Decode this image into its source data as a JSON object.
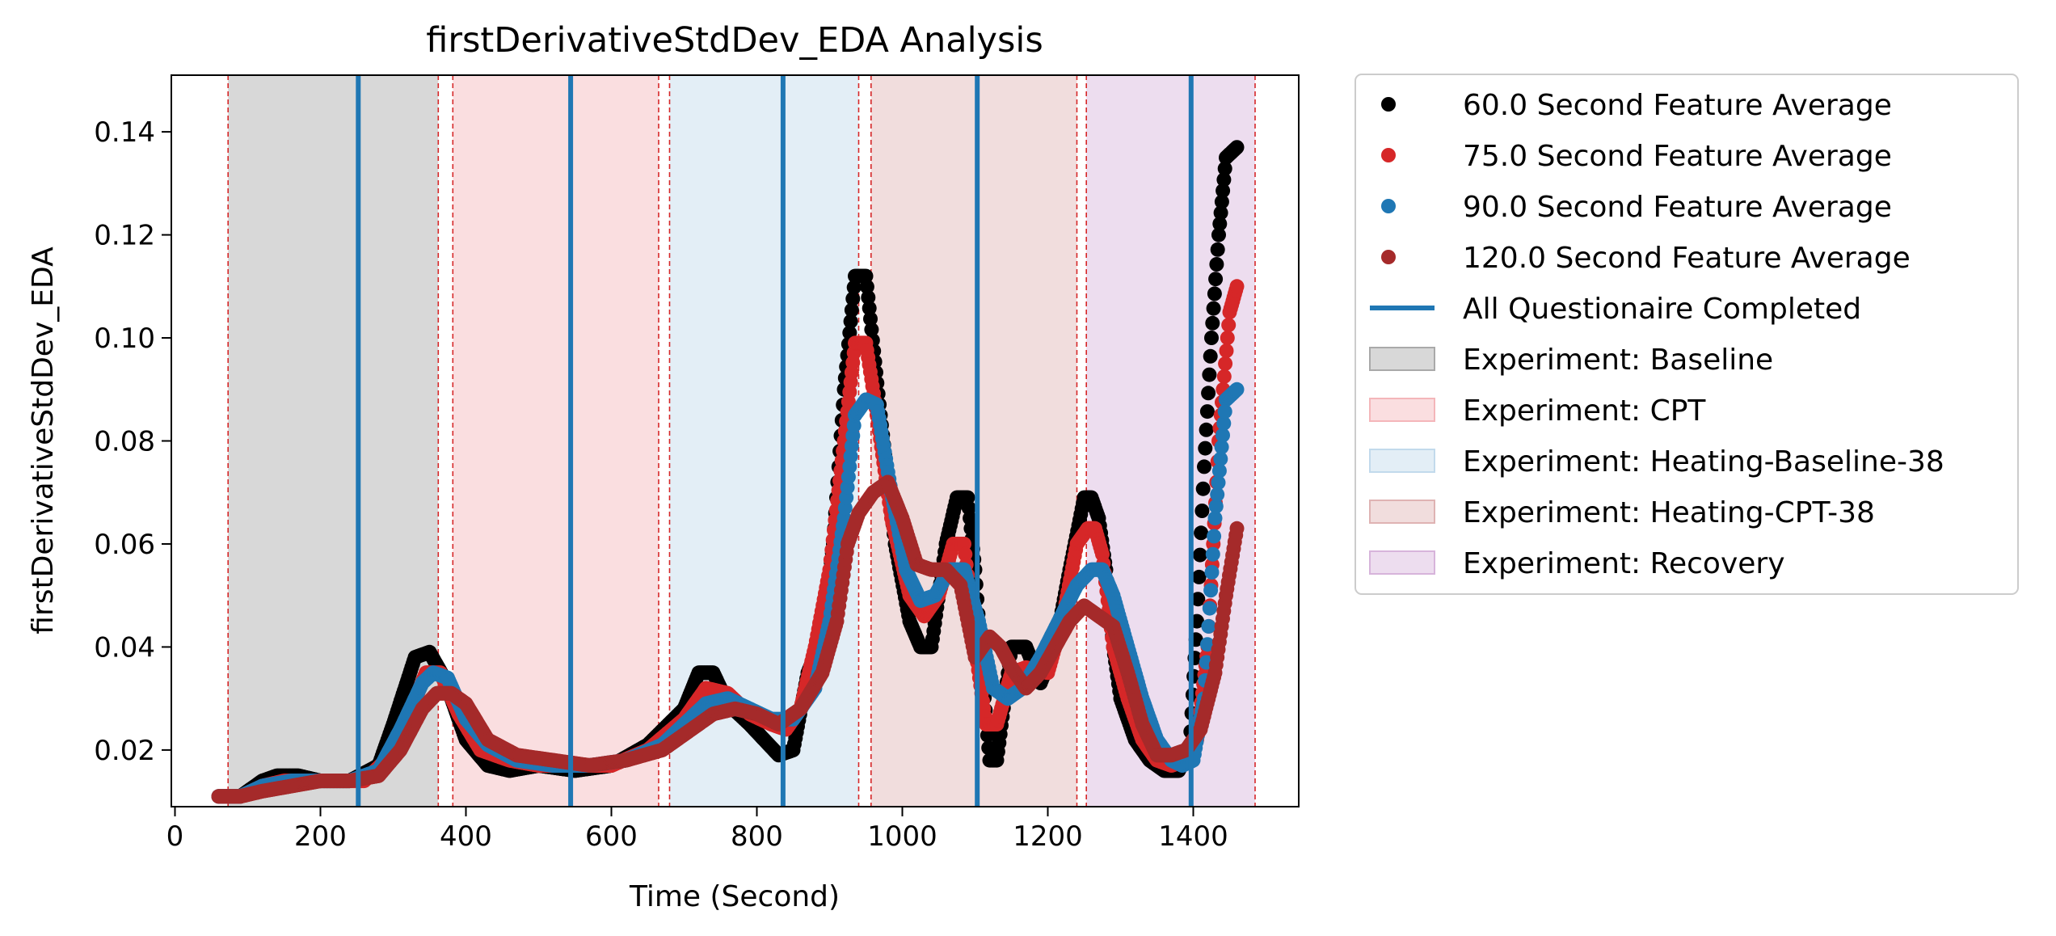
{
  "chart_data": {
    "type": "scatter",
    "title": "firstDerivativeStdDev_EDA Analysis",
    "xlabel": "Time (Second)",
    "ylabel": "firstDerivativeStdDev_EDA",
    "xlim": [
      -5,
      1545
    ],
    "ylim": [
      0.009,
      0.151
    ],
    "xticks": [
      0,
      200,
      400,
      600,
      800,
      1000,
      1200,
      1400
    ],
    "yticks": [
      0.02,
      0.04,
      0.06,
      0.08,
      0.1,
      0.12,
      0.14
    ],
    "xtick_labels": [
      "0",
      "200",
      "400",
      "600",
      "800",
      "1000",
      "1200",
      "1400"
    ],
    "ytick_labels": [
      "0.02",
      "0.04",
      "0.06",
      "0.08",
      "0.10",
      "0.12",
      "0.14"
    ],
    "grid": false,
    "legend_position": "outside-right",
    "phases": [
      {
        "name": "Experiment: Baseline",
        "start": 73,
        "end": 362,
        "color": "#a9a9a9"
      },
      {
        "name": "Experiment: CPT",
        "start": 382,
        "end": 665,
        "color": "#f4b6ba"
      },
      {
        "name": "Experiment: Heating-Baseline-38",
        "start": 680,
        "end": 940,
        "color": "#c2daec"
      },
      {
        "name": "Experiment: Heating-CPT-38",
        "start": 957,
        "end": 1240,
        "color": "#dfb3b3"
      },
      {
        "name": "Experiment: Recovery",
        "start": 1253,
        "end": 1485,
        "color": "#d7b4db"
      }
    ],
    "phase_boundary_color": "#d62728",
    "questionnaire": {
      "name": "All Questionaire Completed",
      "x": [
        252,
        544,
        836,
        1103,
        1397
      ],
      "color": "#1f77b4"
    },
    "series": [
      {
        "name": "60.0 Second Feature Average",
        "color": "#000000",
        "x": [
          60,
          90,
          120,
          140,
          170,
          200,
          240,
          280,
          300,
          330,
          350,
          370,
          400,
          430,
          460,
          500,
          550,
          600,
          650,
          700,
          720,
          740,
          760,
          790,
          810,
          830,
          850,
          870,
          890,
          905,
          920,
          935,
          950,
          970,
          990,
          1010,
          1025,
          1040,
          1060,
          1075,
          1090,
          1100,
          1110,
          1120,
          1130,
          1150,
          1170,
          1190,
          1210,
          1230,
          1250,
          1260,
          1270,
          1280,
          1290,
          1300,
          1320,
          1340,
          1360,
          1380,
          1395,
          1405,
          1415,
          1425,
          1435,
          1445,
          1460
        ],
        "y": [
          0.011,
          0.011,
          0.014,
          0.015,
          0.015,
          0.014,
          0.014,
          0.017,
          0.025,
          0.038,
          0.039,
          0.034,
          0.022,
          0.017,
          0.016,
          0.017,
          0.016,
          0.017,
          0.021,
          0.028,
          0.035,
          0.035,
          0.029,
          0.025,
          0.022,
          0.019,
          0.02,
          0.035,
          0.042,
          0.06,
          0.09,
          0.112,
          0.112,
          0.085,
          0.06,
          0.045,
          0.04,
          0.04,
          0.06,
          0.069,
          0.069,
          0.055,
          0.035,
          0.018,
          0.018,
          0.04,
          0.04,
          0.033,
          0.04,
          0.055,
          0.069,
          0.069,
          0.065,
          0.055,
          0.04,
          0.03,
          0.022,
          0.018,
          0.016,
          0.016,
          0.02,
          0.045,
          0.075,
          0.1,
          0.12,
          0.135,
          0.137
        ]
      },
      {
        "name": "75.0 Second Feature Average",
        "color": "#d62728",
        "x": [
          60,
          90,
          120,
          150,
          180,
          220,
          260,
          290,
          320,
          345,
          365,
          390,
          420,
          460,
          500,
          550,
          600,
          650,
          700,
          730,
          760,
          790,
          820,
          840,
          860,
          880,
          900,
          920,
          935,
          950,
          965,
          985,
          1010,
          1030,
          1050,
          1070,
          1085,
          1100,
          1115,
          1130,
          1150,
          1170,
          1200,
          1220,
          1240,
          1255,
          1265,
          1275,
          1290,
          1310,
          1330,
          1350,
          1370,
          1390,
          1405,
          1420,
          1435,
          1450,
          1460
        ],
        "y": [
          0.011,
          0.011,
          0.013,
          0.014,
          0.014,
          0.014,
          0.014,
          0.018,
          0.026,
          0.035,
          0.035,
          0.027,
          0.02,
          0.018,
          0.017,
          0.017,
          0.017,
          0.02,
          0.026,
          0.032,
          0.031,
          0.027,
          0.025,
          0.024,
          0.028,
          0.04,
          0.055,
          0.08,
          0.099,
          0.099,
          0.085,
          0.065,
          0.05,
          0.046,
          0.05,
          0.06,
          0.06,
          0.04,
          0.025,
          0.025,
          0.035,
          0.036,
          0.035,
          0.045,
          0.06,
          0.063,
          0.063,
          0.058,
          0.04,
          0.03,
          0.022,
          0.018,
          0.017,
          0.018,
          0.022,
          0.04,
          0.08,
          0.105,
          0.11
        ]
      },
      {
        "name": "90.0 Second Feature Average",
        "color": "#1f77b4",
        "x": [
          60,
          90,
          120,
          160,
          200,
          240,
          280,
          310,
          340,
          355,
          375,
          400,
          430,
          470,
          520,
          570,
          620,
          670,
          700,
          730,
          760,
          790,
          820,
          850,
          880,
          900,
          920,
          935,
          950,
          965,
          985,
          1005,
          1025,
          1045,
          1065,
          1085,
          1105,
          1125,
          1145,
          1165,
          1190,
          1215,
          1240,
          1260,
          1275,
          1290,
          1310,
          1330,
          1350,
          1370,
          1385,
          1400,
          1415,
          1430,
          1445,
          1460
        ],
        "y": [
          0.011,
          0.011,
          0.013,
          0.014,
          0.014,
          0.014,
          0.016,
          0.024,
          0.033,
          0.035,
          0.034,
          0.026,
          0.021,
          0.018,
          0.017,
          0.017,
          0.018,
          0.021,
          0.025,
          0.029,
          0.03,
          0.028,
          0.026,
          0.026,
          0.032,
          0.045,
          0.065,
          0.085,
          0.088,
          0.087,
          0.07,
          0.055,
          0.049,
          0.05,
          0.055,
          0.055,
          0.045,
          0.032,
          0.03,
          0.032,
          0.038,
          0.045,
          0.052,
          0.055,
          0.055,
          0.05,
          0.04,
          0.03,
          0.022,
          0.018,
          0.017,
          0.018,
          0.03,
          0.065,
          0.088,
          0.09
        ]
      },
      {
        "name": "120.0 Second Feature Average",
        "color": "#a52a2a",
        "x": [
          60,
          90,
          120,
          160,
          200,
          240,
          280,
          310,
          340,
          360,
          380,
          400,
          430,
          470,
          520,
          570,
          620,
          670,
          710,
          740,
          770,
          800,
          830,
          860,
          890,
          910,
          925,
          940,
          960,
          980,
          1000,
          1020,
          1040,
          1060,
          1080,
          1100,
          1120,
          1135,
          1150,
          1170,
          1190,
          1210,
          1230,
          1250,
          1270,
          1290,
          1310,
          1330,
          1350,
          1370,
          1390,
          1410,
          1430,
          1445,
          1460
        ],
        "y": [
          0.011,
          0.011,
          0.012,
          0.013,
          0.014,
          0.014,
          0.015,
          0.02,
          0.028,
          0.031,
          0.031,
          0.029,
          0.022,
          0.019,
          0.018,
          0.017,
          0.018,
          0.02,
          0.024,
          0.027,
          0.028,
          0.027,
          0.025,
          0.028,
          0.035,
          0.045,
          0.06,
          0.066,
          0.07,
          0.072,
          0.065,
          0.056,
          0.055,
          0.055,
          0.052,
          0.038,
          0.042,
          0.04,
          0.036,
          0.032,
          0.035,
          0.04,
          0.045,
          0.048,
          0.046,
          0.044,
          0.035,
          0.025,
          0.019,
          0.019,
          0.02,
          0.024,
          0.035,
          0.05,
          0.063
        ]
      }
    ]
  }
}
